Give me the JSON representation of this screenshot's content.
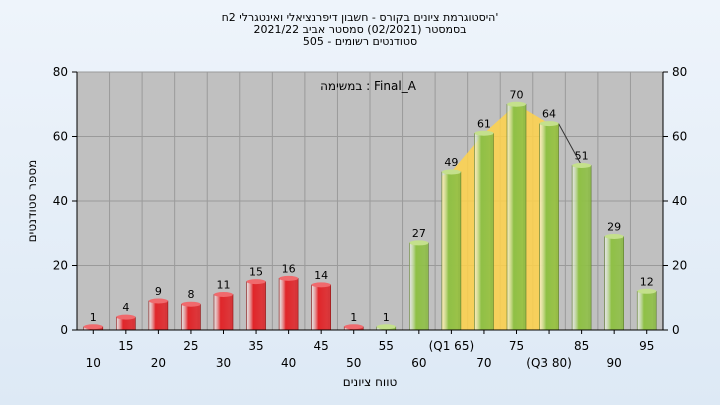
{
  "header": {
    "line1": "היסטוגרמת ציונים בקורס - חשבון דיפרנציאלי ואינטגרלי 2ח'",
    "line2": "בסמסטר  (02/2021)  סמסטר אביב 2021/22",
    "line3": "סטודנטים רשומים - 505"
  },
  "colors": {
    "plot_bg": "#c0c0c0",
    "fail_bar": "#e0262a",
    "pass_bar": "#8fc046",
    "iqr_fill": "#ffd24a"
  },
  "chart_data": {
    "type": "bar",
    "title": "",
    "xlabel": "טווח ציונים",
    "ylabel": "מספר סטודנטים",
    "legend_text": "במשימה : Final_A",
    "ylim": [
      0,
      80
    ],
    "yticks": [
      0,
      20,
      40,
      60,
      80
    ],
    "grid": true,
    "categories": [
      "10",
      "15",
      "20",
      "25",
      "30",
      "35",
      "40",
      "45",
      "50",
      "55",
      "60",
      "(Q1 65)",
      "70",
      "75",
      "(Q3 80)",
      "85",
      "90",
      "95"
    ],
    "values": [
      1,
      4,
      9,
      8,
      11,
      15,
      16,
      14,
      1,
      1,
      27,
      49,
      61,
      70,
      64,
      51,
      29,
      12
    ],
    "bar_status": [
      "fail",
      "fail",
      "fail",
      "fail",
      "fail",
      "fail",
      "fail",
      "fail",
      "fail",
      "pass",
      "pass",
      "pass",
      "pass",
      "pass",
      "pass",
      "pass",
      "pass",
      "pass"
    ],
    "iqr": {
      "q1_category": "(Q1 65)",
      "median_category": "75",
      "q3_category": "(Q3 80)"
    }
  }
}
